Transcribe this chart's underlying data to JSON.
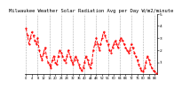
{
  "title": "Milwaukee Weather Solar Radiation Avg per Day W/m2/minute",
  "line_color": "#FF0000",
  "bg_color": "#ffffff",
  "grid_color": "#999999",
  "y_values": [
    3.8,
    3.2,
    2.5,
    3.0,
    3.5,
    3.2,
    2.8,
    2.5,
    3.0,
    2.0,
    1.5,
    1.2,
    1.8,
    2.2,
    1.5,
    1.0,
    0.8,
    0.5,
    1.2,
    1.5,
    1.0,
    0.8,
    1.5,
    2.0,
    1.8,
    1.5,
    1.2,
    1.0,
    1.5,
    2.0,
    1.5,
    1.2,
    0.8,
    1.2,
    1.5,
    1.2,
    0.8,
    0.5,
    0.3,
    0.5,
    1.0,
    1.5,
    1.2,
    0.8,
    0.5,
    1.0,
    2.0,
    2.5,
    3.0,
    2.5,
    2.0,
    2.5,
    3.0,
    3.5,
    3.2,
    2.8,
    2.5,
    2.0,
    1.8,
    2.2,
    2.5,
    2.8,
    2.5,
    2.2,
    2.8,
    3.0,
    2.8,
    2.5,
    2.2,
    2.0,
    1.8,
    2.0,
    2.5,
    2.2,
    1.8,
    1.5,
    1.2,
    0.8,
    0.5,
    0.3,
    0.2,
    0.5,
    1.0,
    1.5,
    1.2,
    0.8,
    0.5,
    0.3,
    0.2,
    0.1
  ],
  "ylim": [
    0.0,
    5.0
  ],
  "yticks": [
    1,
    2,
    3,
    4,
    5
  ],
  "title_fontsize": 4.0,
  "tick_fontsize": 3.2,
  "linewidth": 0.7,
  "markersize": 1.2,
  "xtick_interval": 4,
  "vgrid_interval": 8
}
